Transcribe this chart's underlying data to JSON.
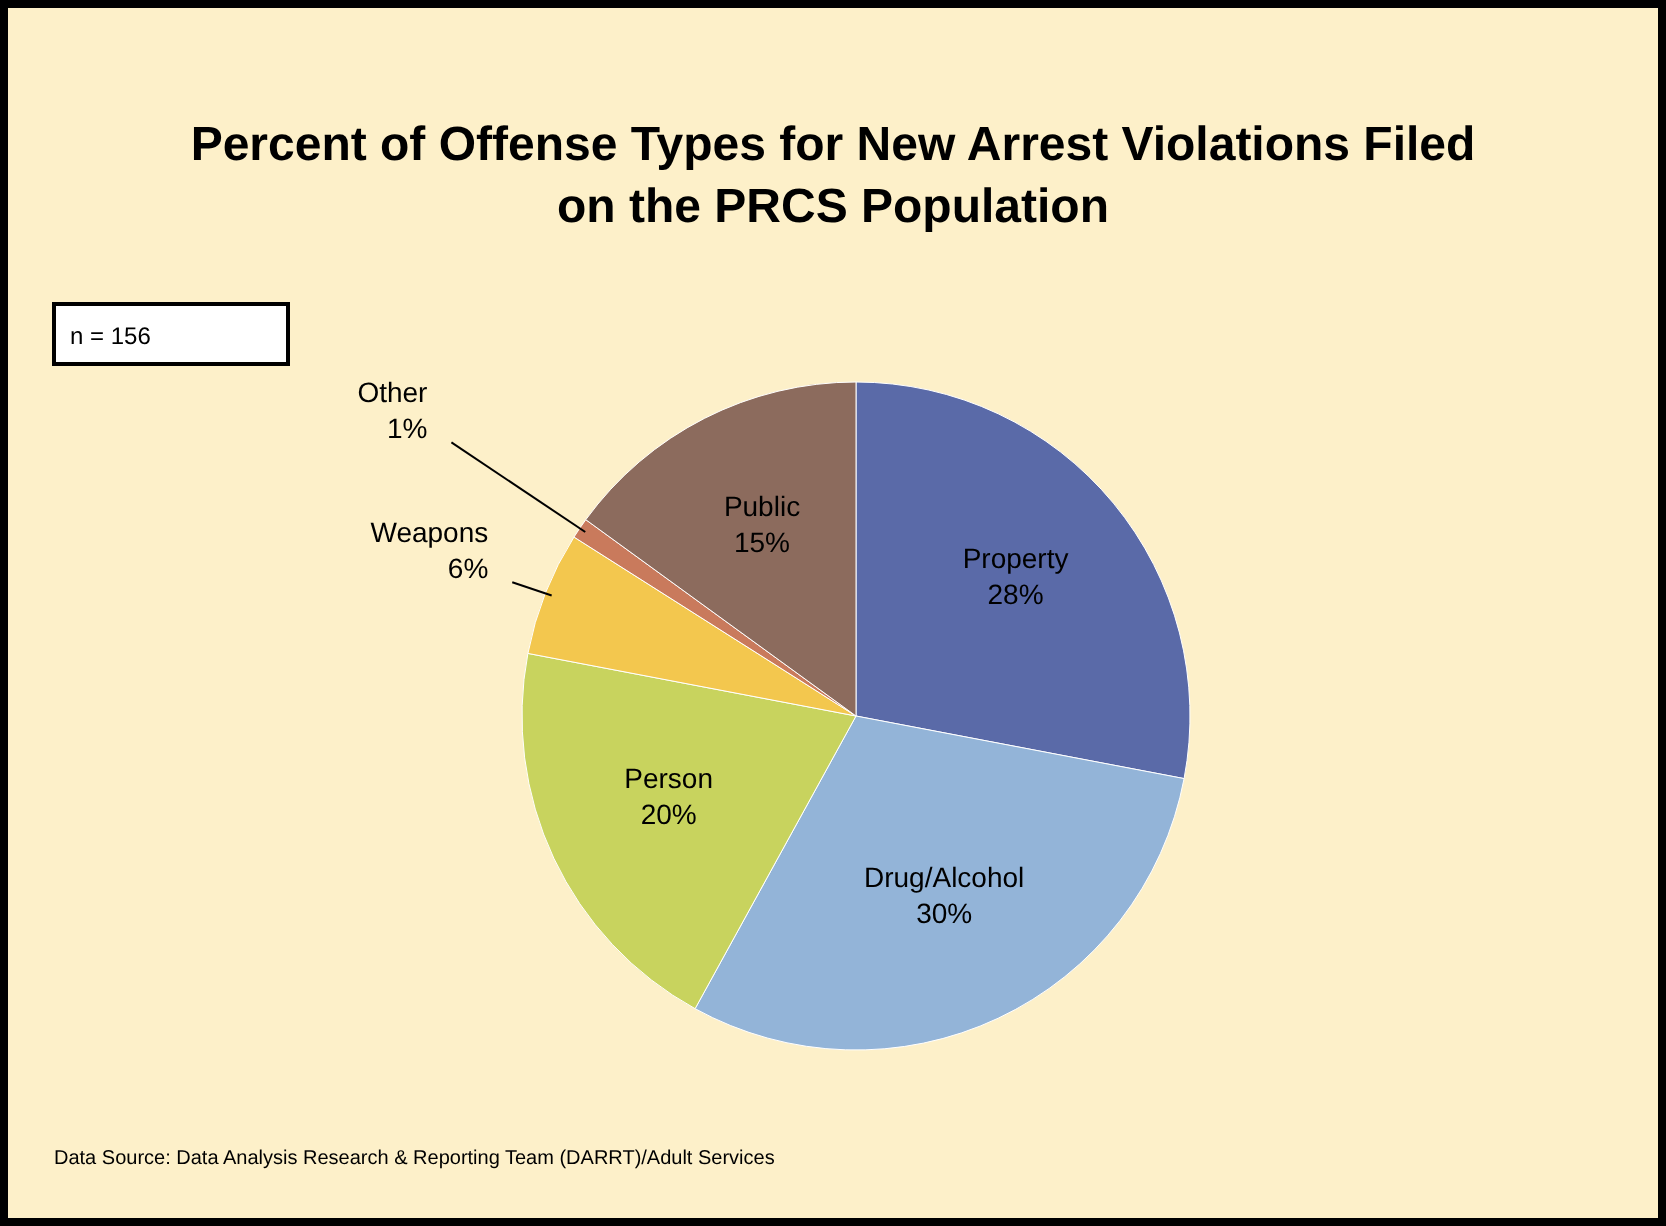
{
  "chart_data": {
    "type": "pie",
    "title": "Percent of Offense Types for New Arrest Violations Filed on the PRCS Population",
    "categories": [
      "Property",
      "Drug/Alcohol",
      "Person",
      "Weapons",
      "Other",
      "Public"
    ],
    "values": [
      28,
      30,
      20,
      6,
      1,
      15
    ],
    "colors": [
      "#5a6aa8",
      "#93b4d8",
      "#c8d35e",
      "#f3c74e",
      "#c97a5c",
      "#8c6b5d"
    ],
    "value_labels": [
      "28%",
      "30%",
      "20%",
      "6%",
      "1%",
      "15%"
    ],
    "annotations": [
      "n = 156",
      "Data Source: Data Analysis Research & Reporting Team (DARRT)/Adult Services"
    ]
  }
}
